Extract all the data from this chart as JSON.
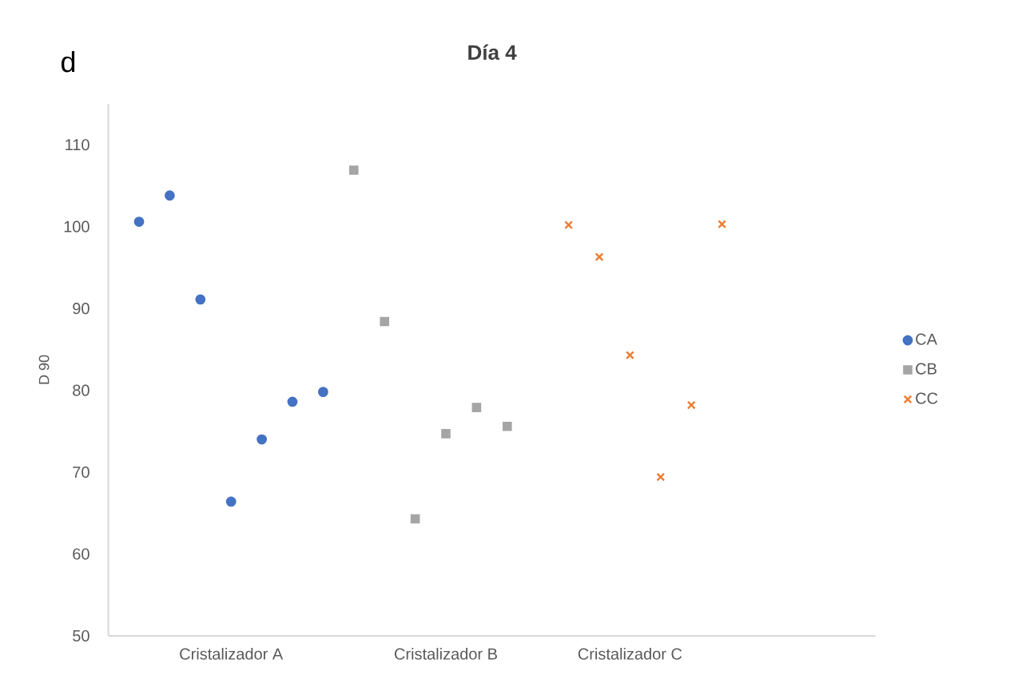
{
  "chart_data": {
    "type": "scatter",
    "title": "Día 4",
    "ylabel": "D 90",
    "annotations": [
      "d"
    ],
    "categories": [
      null,
      null,
      null,
      "Cristalizador A",
      null,
      null,
      null,
      null,
      null,
      null,
      "Cristalizador B",
      null,
      null,
      null,
      null,
      null,
      "Cristalizador C",
      null,
      null,
      null,
      null,
      null,
      null,
      null
    ],
    "ylim": [
      50,
      115
    ],
    "yticks": [
      50,
      60,
      70,
      80,
      90,
      100,
      110
    ],
    "legend": "right",
    "grid": false,
    "series": [
      {
        "name": "CA",
        "color": "#4472c4",
        "marker": "circle",
        "values": [
          100.6,
          103.8,
          91.1,
          66.4,
          74.0,
          78.6,
          79.8,
          null,
          null,
          null,
          null,
          null,
          null,
          null,
          null,
          null,
          null,
          null,
          null,
          null,
          null,
          null,
          null,
          null
        ]
      },
      {
        "name": "CB",
        "color": "#a5a5a5",
        "marker": "square",
        "values": [
          null,
          null,
          null,
          null,
          null,
          null,
          null,
          106.9,
          88.4,
          64.3,
          74.7,
          77.9,
          75.6,
          null,
          null,
          null,
          null,
          null,
          null,
          null,
          null,
          null,
          null,
          null
        ]
      },
      {
        "name": "CC",
        "color": "#ed7d31",
        "marker": "cross",
        "values": [
          null,
          null,
          null,
          null,
          null,
          null,
          null,
          null,
          null,
          null,
          null,
          null,
          null,
          null,
          100.2,
          96.3,
          84.3,
          69.4,
          78.2,
          100.3,
          null,
          null,
          null,
          null
        ]
      }
    ]
  }
}
